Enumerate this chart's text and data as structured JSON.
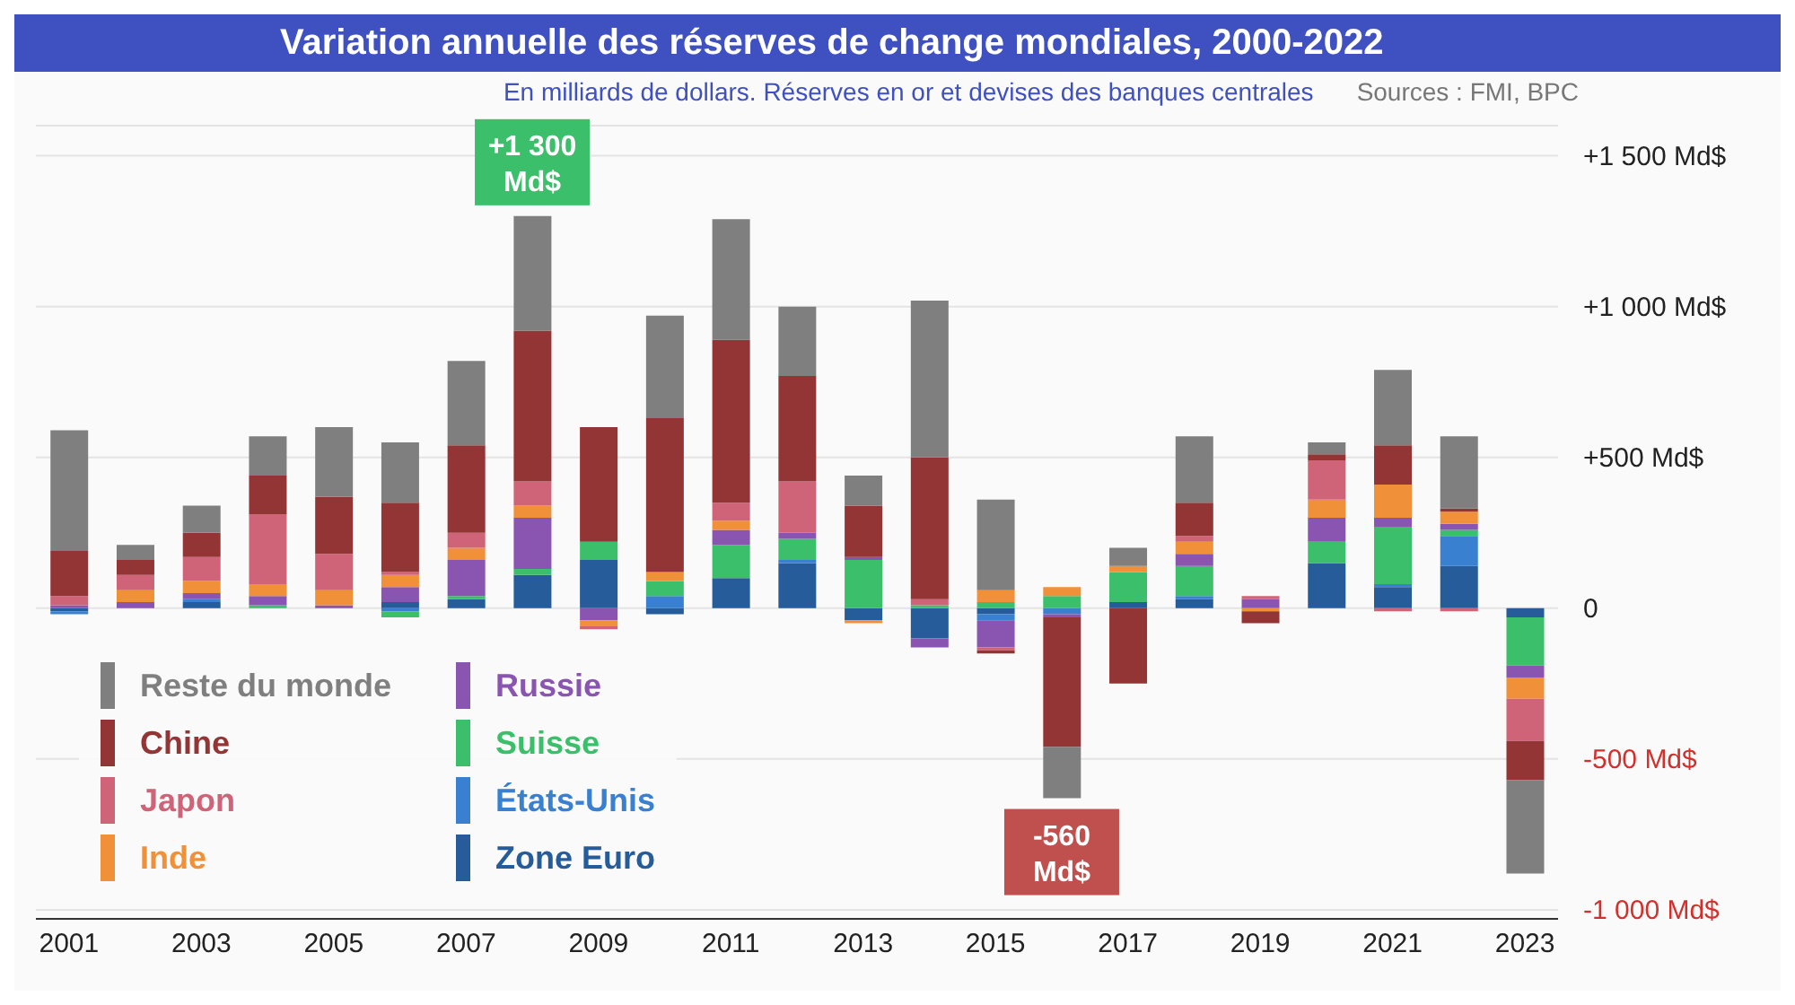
{
  "chart_data": {
    "type": "bar",
    "title": "Variation annuelle des réserves de change mondiales, 2000-2022",
    "subtitle": "En milliards de dollars. Réserves en or et devises des banques centrales",
    "annotations": [
      "Sources : FMI, BPC",
      {
        "text": "+1 300 Md$",
        "y": 1300
      },
      {
        "text": "-560 Md$",
        "y": -630
      }
    ],
    "categories": [
      "2001",
      null,
      "2003",
      null,
      "2005",
      null,
      "2007",
      null,
      "2009",
      null,
      "2011",
      null,
      "2013",
      null,
      "2015",
      null,
      "2017",
      null,
      "2019",
      null,
      "2021",
      null,
      "2023"
    ],
    "stacked": true,
    "series": [
      {
        "name": "Zone Euro",
        "color": "#255c99",
        "values": [
          -10,
          0,
          20,
          0,
          0,
          20,
          30,
          110,
          160,
          -20,
          100,
          150,
          -40,
          -100,
          -20,
          0,
          20,
          30,
          0,
          150,
          70,
          140,
          -30
        ]
      },
      {
        "name": "États-Unis",
        "color": "#3a80d0",
        "values": [
          -10,
          0,
          10,
          0,
          0,
          -10,
          0,
          0,
          0,
          40,
          0,
          10,
          0,
          0,
          -20,
          -20,
          0,
          10,
          0,
          0,
          10,
          100,
          0
        ]
      },
      {
        "name": "Suisse",
        "color": "#3cbf6a",
        "values": [
          0,
          0,
          0,
          10,
          0,
          -20,
          10,
          20,
          60,
          50,
          110,
          70,
          160,
          10,
          20,
          40,
          100,
          100,
          0,
          70,
          190,
          20,
          -160
        ]
      },
      {
        "name": "Russie",
        "color": "#8a55b0",
        "values": [
          10,
          20,
          20,
          30,
          10,
          50,
          120,
          170,
          -40,
          0,
          50,
          20,
          10,
          -30,
          -90,
          -10,
          0,
          40,
          30,
          80,
          30,
          20,
          -40
        ]
      },
      {
        "name": "Inde",
        "color": "#f0913a",
        "values": [
          0,
          40,
          40,
          40,
          50,
          40,
          40,
          40,
          -20,
          30,
          30,
          0,
          -10,
          0,
          40,
          30,
          20,
          40,
          -10,
          60,
          110,
          40,
          -70
        ]
      },
      {
        "name": "Japon",
        "color": "#cf6378",
        "values": [
          30,
          50,
          80,
          230,
          120,
          10,
          50,
          80,
          -10,
          0,
          60,
          170,
          0,
          20,
          -10,
          0,
          0,
          20,
          10,
          130,
          -10,
          -10,
          -140
        ]
      },
      {
        "name": "Chine",
        "color": "#943535",
        "values": [
          150,
          50,
          80,
          130,
          190,
          230,
          290,
          500,
          380,
          510,
          540,
          350,
          170,
          470,
          -10,
          -430,
          -250,
          110,
          -40,
          20,
          130,
          10,
          -130
        ]
      },
      {
        "name": "Reste du monde",
        "color": "#7f7f7f",
        "values": [
          400,
          50,
          90,
          130,
          230,
          200,
          280,
          380,
          0,
          340,
          400,
          230,
          100,
          520,
          300,
          -170,
          60,
          220,
          0,
          40,
          250,
          240,
          -310
        ]
      }
    ],
    "ylim": [
      -1030,
      1600
    ],
    "yticks": [
      {
        "value": 1500,
        "label": "+1 500 Md$"
      },
      {
        "value": 1000,
        "label": "+1 000 Md$"
      },
      {
        "value": 500,
        "label": "+500 Md$"
      },
      0,
      {
        "value": -500,
        "label": "-500 Md$"
      },
      {
        "value": -1000,
        "label": "-1 000 Md$"
      }
    ],
    "grid": "y",
    "legend": "bottom left"
  }
}
